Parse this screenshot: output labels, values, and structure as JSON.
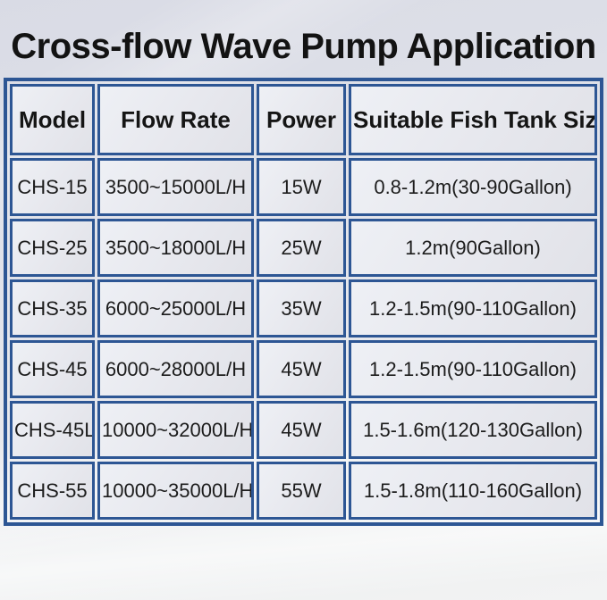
{
  "page": {
    "title": "Cross-flow Wave Pump Application"
  },
  "colors": {
    "table_border": "#2d5694",
    "cell_background": "#e8e9ee",
    "title_text": "#131313",
    "page_background_top": "#d9dbe5",
    "page_background_bottom": "#f2f3f3"
  },
  "table": {
    "headers": [
      "Model",
      "Flow Rate",
      "Power",
      "Suitable Fish Tank Size"
    ],
    "rows": [
      {
        "model": "CHS-15",
        "flow_rate": "3500~15000L/H",
        "power": "15W",
        "tank_size": "0.8-1.2m(30-90Gallon)"
      },
      {
        "model": "CHS-25",
        "flow_rate": "3500~18000L/H",
        "power": "25W",
        "tank_size": "1.2m(90Gallon)"
      },
      {
        "model": "CHS-35",
        "flow_rate": "6000~25000L/H",
        "power": "35W",
        "tank_size": "1.2-1.5m(90-110Gallon)"
      },
      {
        "model": "CHS-45",
        "flow_rate": "6000~28000L/H",
        "power": "45W",
        "tank_size": "1.2-1.5m(90-110Gallon)"
      },
      {
        "model": "CHS-45L",
        "flow_rate": "10000~32000L/H",
        "power": "45W",
        "tank_size": "1.5-1.6m(120-130Gallon)"
      },
      {
        "model": "CHS-55",
        "flow_rate": "10000~35000L/H",
        "power": "55W",
        "tank_size": "1.5-1.8m(110-160Gallon)"
      }
    ]
  }
}
